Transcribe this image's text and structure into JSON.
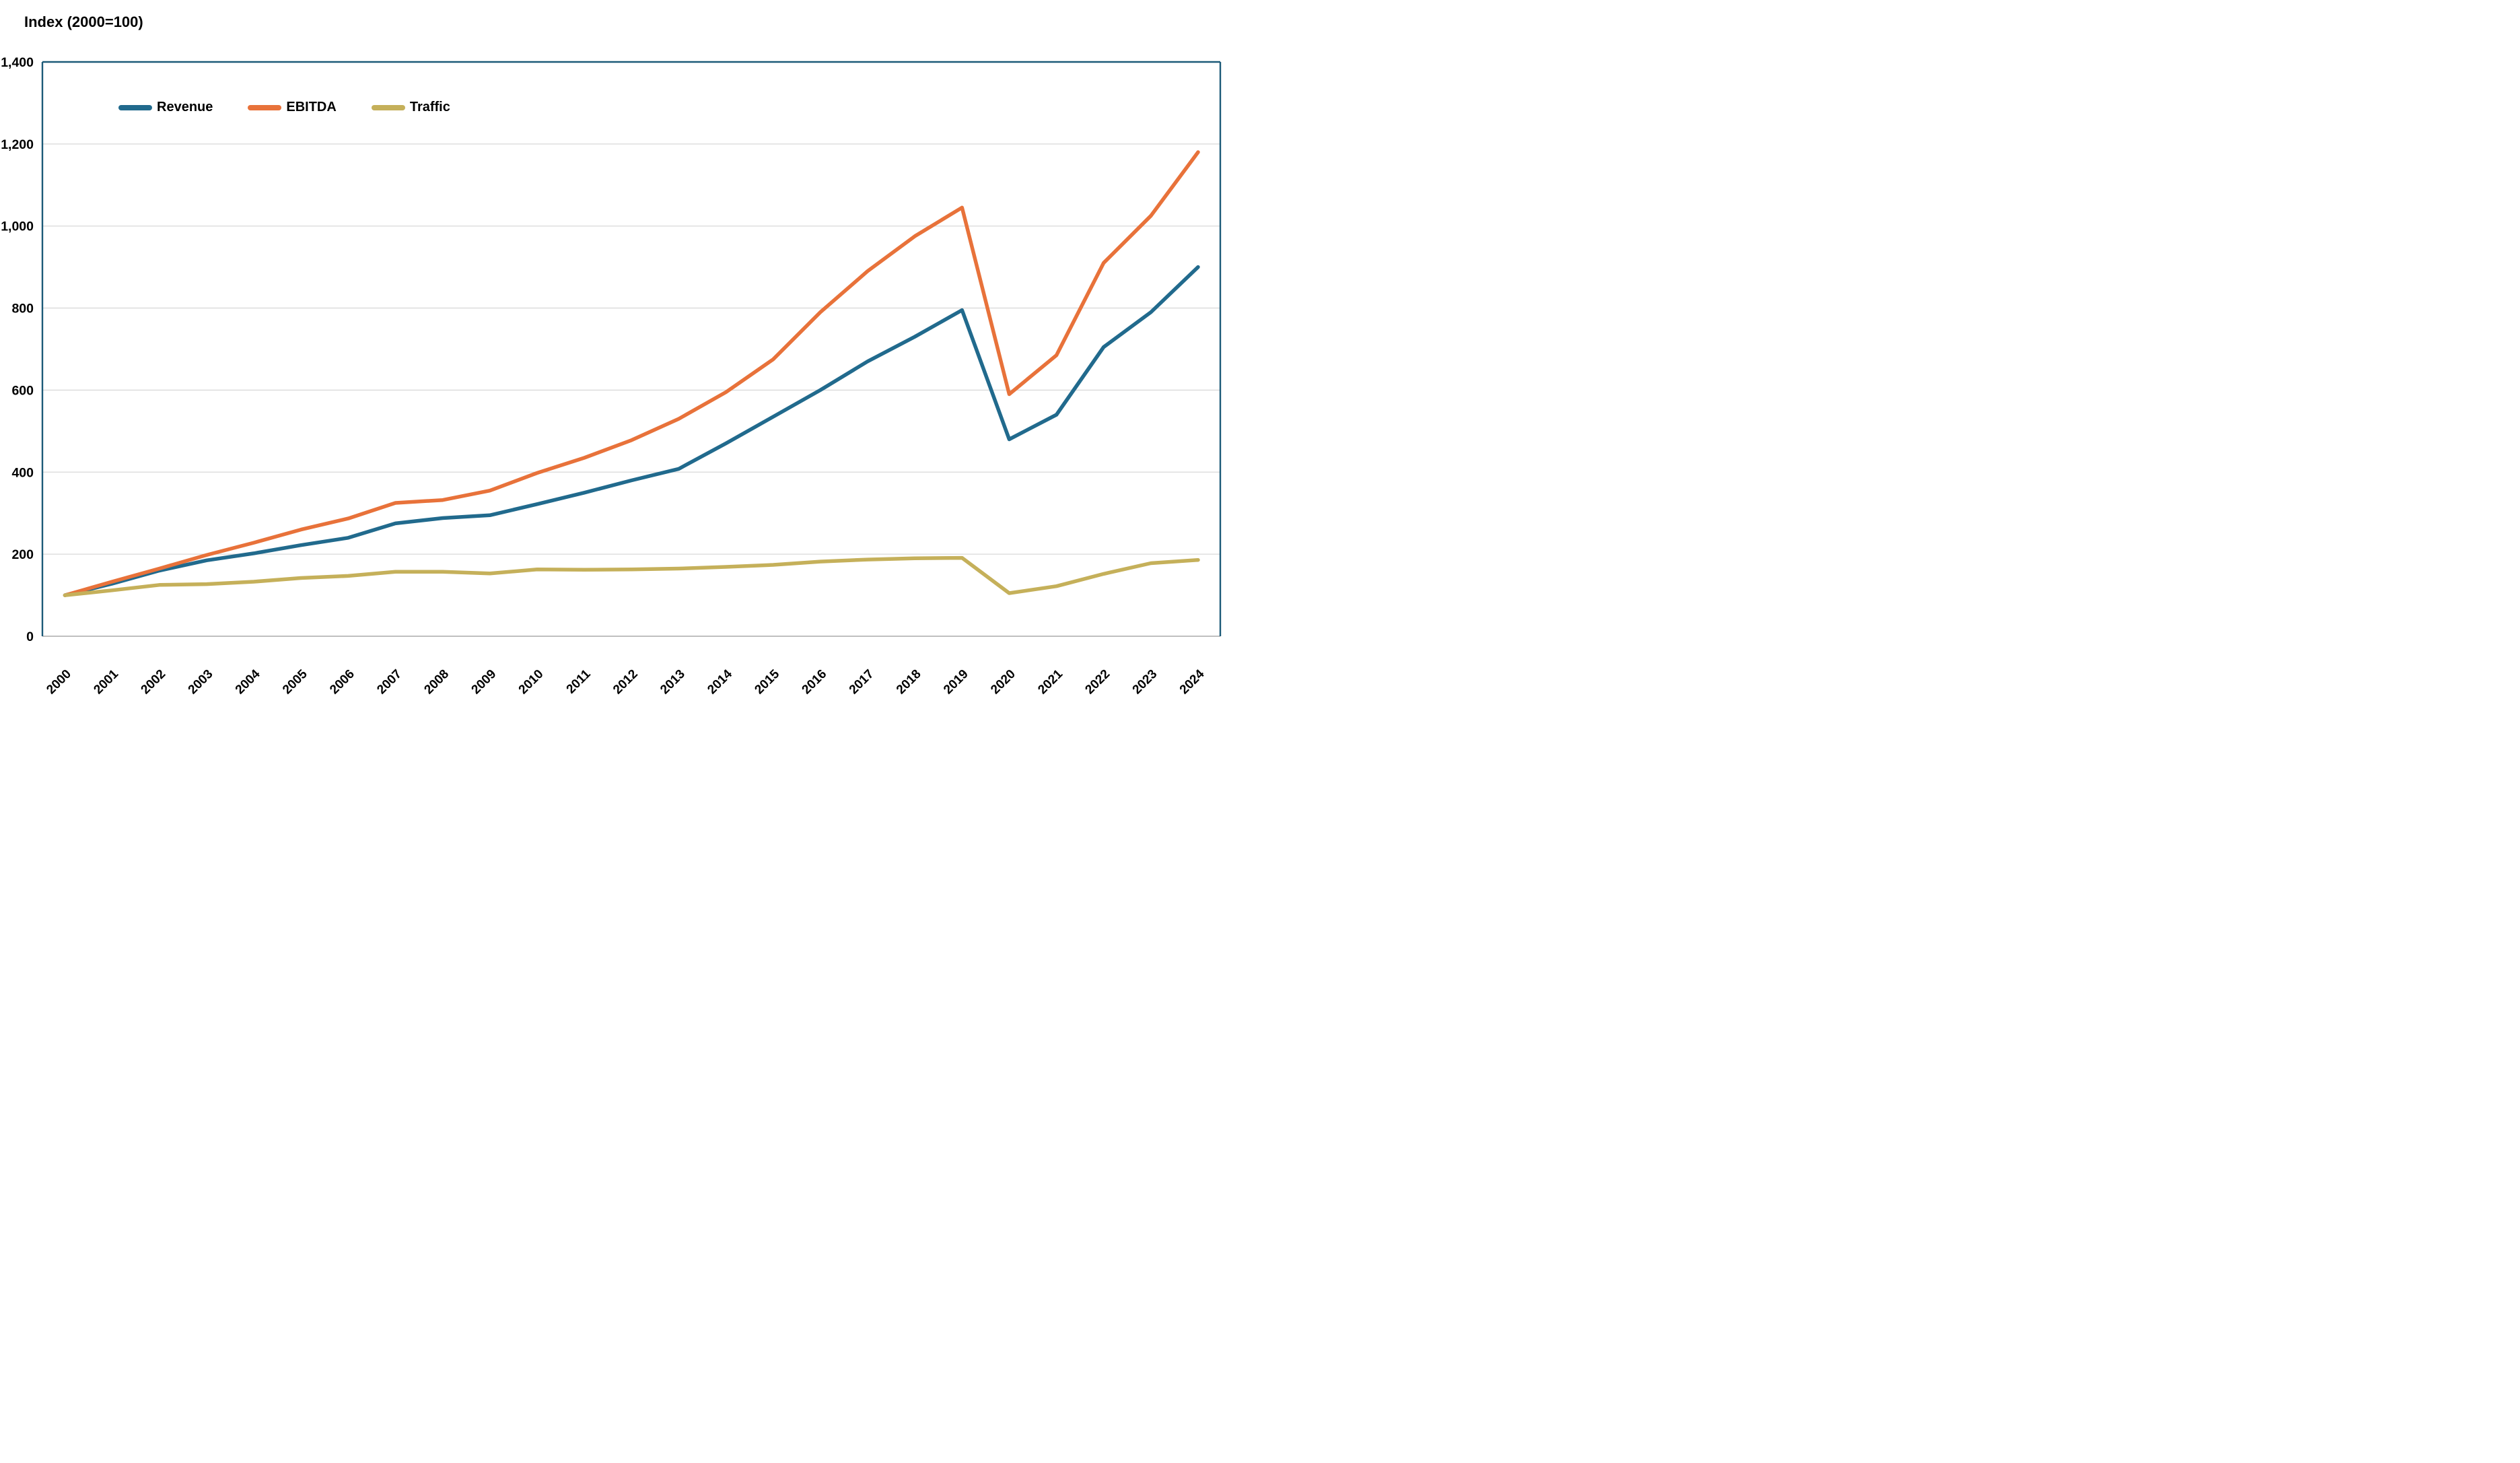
{
  "chart": {
    "title": "Index (2000=100)"
  },
  "chart_data": {
    "type": "line",
    "title": "Index (2000=100)",
    "x": [
      2000,
      2001,
      2002,
      2003,
      2004,
      2005,
      2006,
      2007,
      2008,
      2009,
      2010,
      2011,
      2012,
      2013,
      2014,
      2015,
      2016,
      2017,
      2018,
      2019,
      2020,
      2021,
      2022,
      2023,
      2024
    ],
    "series": [
      {
        "name": "Revenue",
        "color": "#216A8D",
        "values": [
          100,
          128,
          160,
          185,
          202,
          222,
          240,
          275,
          288,
          295,
          322,
          350,
          380,
          408,
          470,
          535,
          600,
          670,
          730,
          795,
          480,
          540,
          705,
          790,
          900
        ]
      },
      {
        "name": "EBITDA",
        "color": "#E8723A",
        "values": [
          100,
          133,
          165,
          198,
          228,
          260,
          287,
          325,
          332,
          355,
          398,
          435,
          478,
          530,
          595,
          675,
          790,
          890,
          975,
          1045,
          590,
          685,
          910,
          1025,
          1180
        ]
      },
      {
        "name": "Traffic",
        "color": "#C5B05A",
        "values": [
          100,
          112,
          125,
          127,
          133,
          142,
          147,
          157,
          157,
          153,
          163,
          162,
          163,
          165,
          169,
          174,
          182,
          187,
          190,
          191,
          105,
          122,
          152,
          178,
          186
        ]
      }
    ],
    "ylim": [
      0,
      1400
    ],
    "ytick_step": 200,
    "ytick_labels": [
      "0",
      "200",
      "400",
      "600",
      "800",
      "1,000",
      "1,200",
      "1,400"
    ],
    "grid": true,
    "legend_position": "top-left-inside",
    "colors": {
      "axis_frame": "#1C5A78",
      "baseline": "#BFBFBF",
      "gridline": "#D9D9D9",
      "text": "#000000"
    }
  }
}
